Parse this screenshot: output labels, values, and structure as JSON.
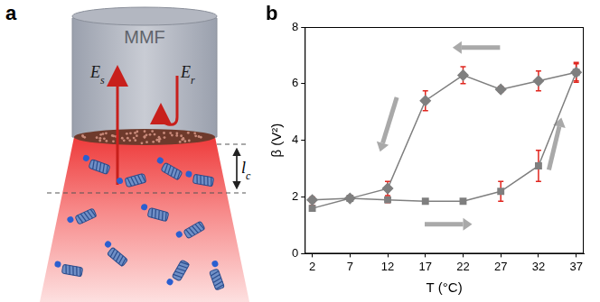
{
  "chart_data": {
    "type": "line",
    "panel_label": "b",
    "x_label": "T (°C)",
    "y_label": "β (V²)",
    "x": [
      2,
      7,
      12,
      17,
      22,
      27,
      32,
      37
    ],
    "xlim": [
      1,
      38
    ],
    "xticks": [
      2,
      7,
      12,
      17,
      22,
      27,
      32,
      37
    ],
    "ylim": [
      0,
      8
    ],
    "yticks": [
      0,
      2,
      4,
      6,
      8
    ],
    "grid": false,
    "series": [
      {
        "color": "#7f7f7f",
        "marker": "square",
        "values": [
          1.6,
          1.95,
          1.9,
          1.85,
          1.85,
          2.2,
          3.1,
          6.4
        ],
        "errors": [
          0.1,
          0.1,
          0.1,
          0.05,
          0.05,
          0.35,
          0.55,
          0.35
        ]
      },
      {
        "color": "#7f7f7f",
        "marker": "diamond",
        "values": [
          1.9,
          1.95,
          2.3,
          5.4,
          6.3,
          5.8,
          6.1,
          6.4
        ],
        "errors": [
          0.1,
          0.1,
          0.25,
          0.35,
          0.3,
          0.1,
          0.35,
          0.3
        ]
      }
    ]
  },
  "diagram": {
    "panel_label": "a",
    "fiber_label": "MMF",
    "signal_field": {
      "base": "E",
      "sub": "s"
    },
    "reference_field": {
      "base": "E",
      "sub": "r"
    },
    "length_label": {
      "base": "l",
      "sub": "c"
    }
  }
}
